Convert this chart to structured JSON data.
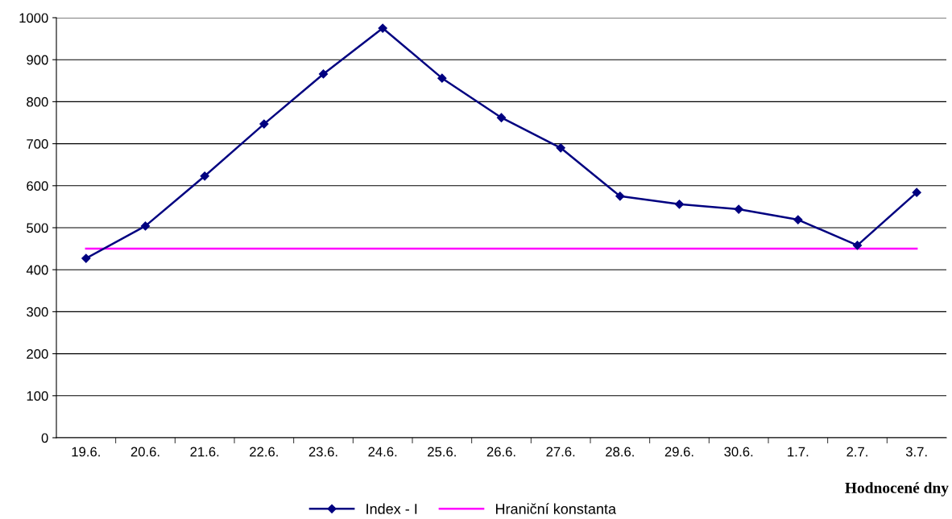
{
  "chart_data": {
    "type": "line",
    "categories": [
      "19.6.",
      "20.6.",
      "21.6.",
      "22.6.",
      "23.6.",
      "24.6.",
      "25.6.",
      "26.6.",
      "27.6.",
      "28.6.",
      "29.6.",
      "30.6.",
      "1.7.",
      "2.7.",
      "3.7."
    ],
    "series": [
      {
        "name": "Index - I",
        "color": "#000080",
        "marker": "diamond",
        "values": [
          427,
          504,
          623,
          747,
          866,
          975,
          856,
          762,
          690,
          575,
          556,
          544,
          519,
          458,
          584
        ]
      },
      {
        "name": "Hraniční konstanta",
        "color": "#ff00ff",
        "marker": "none",
        "values": [
          450,
          450,
          450,
          450,
          450,
          450,
          450,
          450,
          450,
          450,
          450,
          450,
          450,
          450,
          450
        ]
      }
    ],
    "xlabel": "Hodnocené dny",
    "ylim": [
      0,
      1000
    ],
    "yticks": [
      0,
      100,
      200,
      300,
      400,
      500,
      600,
      700,
      800,
      900,
      1000
    ],
    "grid": "y",
    "legend": "bottom",
    "line_style": "solid"
  }
}
